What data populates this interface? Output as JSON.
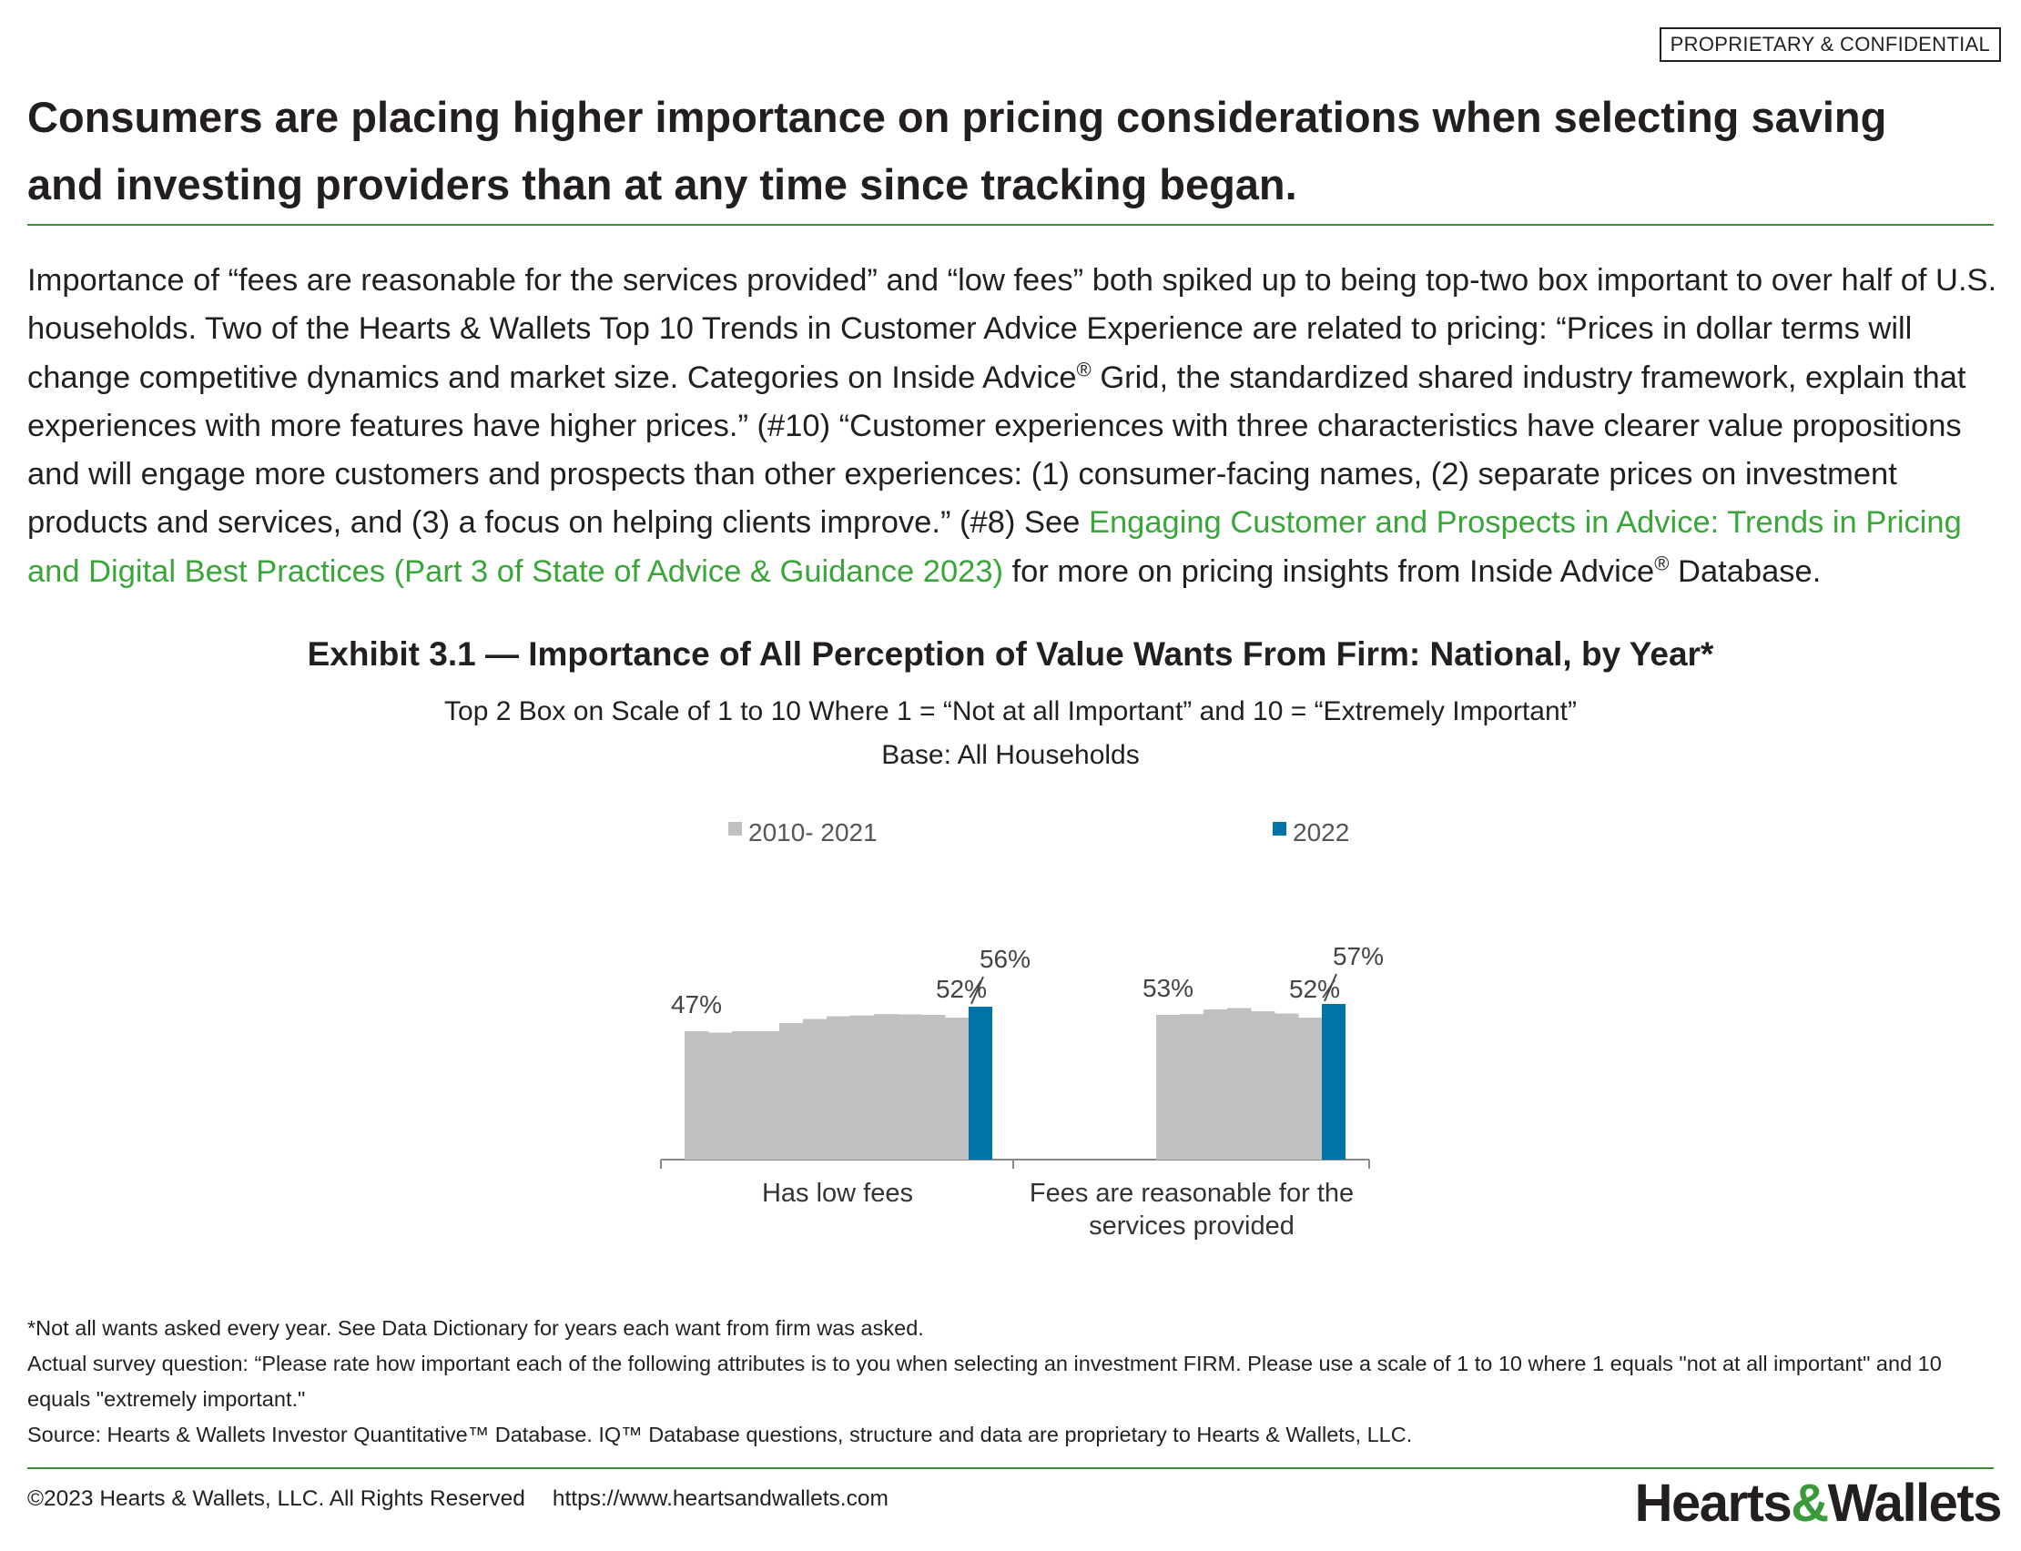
{
  "badge": "PROPRIETARY & CONFIDENTIAL",
  "headline": "Consumers are placing higher importance on pricing considerations when selecting saving and investing providers than at any time since tracking began.",
  "intro": {
    "part1": "Importance of “fees are reasonable for the services provided” and “low fees” both spiked up to being top-two box important to over half of U.S. households. Two of the Hearts & Wallets Top 10 Trends in Customer Advice Experience are related to pricing: “Prices in dollar terms will change competitive dynamics and market size. Categories on Inside Advice",
    "reg1": "®",
    "part2": " Grid, the standardized shared industry framework, explain that experiences with more features have higher prices.” (#10) “Customer experiences with three characteristics have clearer value propositions and will engage more customers and prospects than other experiences: (1) consumer-facing names, (2) separate prices on investment products and services, and (3) a focus on helping clients improve.” (#8) See ",
    "link": "Engaging Customer and Prospects in Advice: Trends in Pricing and Digital Best Practices (Part 3 of State of Advice & Guidance 2023)",
    "part3": " for more on pricing insights from Inside Advice",
    "reg2": "®",
    "part4": " Database."
  },
  "exhibit": {
    "title": "Exhibit 3.1 — Importance of All Perception of Value Wants From Firm: National, by Year*",
    "subtitle": "Top 2 Box on Scale of 1 to 10 Where 1 = “Not at all Important” and 10 = “Extremely Important”",
    "base": "Base: All Households"
  },
  "chart_data": {
    "type": "bar",
    "units": "%",
    "ylim": [
      0,
      100
    ],
    "legend": {
      "placement": "top",
      "entries": [
        {
          "name": "2010- 2021",
          "color": "#c0c0c0"
        },
        {
          "name": "2022",
          "color": "#0073a8"
        }
      ]
    },
    "colors": {
      "history": "#c0c0c0",
      "current": "#0073a8"
    },
    "groups": [
      {
        "category": [
          "Has low fees"
        ],
        "history": [
          47,
          46.5,
          47,
          47,
          50,
          51.5,
          52.5,
          52.8,
          53.3,
          53.2,
          53,
          52
        ],
        "current": 56,
        "labels": {
          "first": "47%",
          "last_history": "52%",
          "current": "56%"
        }
      },
      {
        "category": [
          "Fees are reasonable for the",
          "services provided"
        ],
        "history": [
          53,
          53.3,
          55,
          55.5,
          54.3,
          53.5,
          52
        ],
        "current": 57,
        "labels": {
          "first": "53%",
          "last_history": "52%",
          "current": "57%"
        }
      }
    ],
    "grid": false
  },
  "notes": [
    "*Not all wants asked every year. See Data Dictionary for years each want from firm was asked.",
    "Actual survey question: “Please rate how important each of the following attributes is to you when selecting an investment FIRM. Please use a scale of 1 to 10 where 1 equals \"not at all important\" and 10 equals \"extremely important.\"",
    "Source: Hearts & Wallets Investor Quantitative™ Database. IQ™ Database questions, structure and data are proprietary to Hearts & Wallets, LLC."
  ],
  "footer": {
    "copyright": "©2023 Hearts & Wallets, LLC. All Rights Reserved",
    "url": "https://www.heartsandwallets.com"
  },
  "logo": {
    "left": "Hearts",
    "amp": "&",
    "right": "Wallets"
  }
}
